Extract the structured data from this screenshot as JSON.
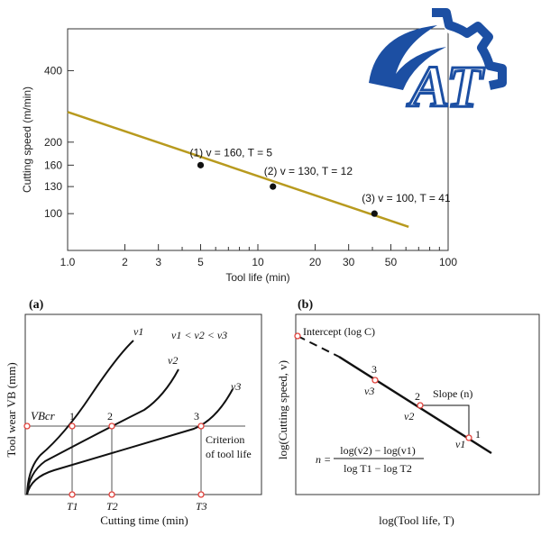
{
  "logo": {
    "text": "AT",
    "color": "#1c4fa3"
  },
  "chart_data": [
    {
      "type": "line",
      "title": "",
      "xlabel": "Tool life (min)",
      "ylabel": "Cutting speed (m/min)",
      "xscale": "log",
      "yscale": "log",
      "xlim": [
        1,
        100
      ],
      "ylim": [
        70,
        600
      ],
      "xticks": [
        {
          "value": 1,
          "label": "1.0"
        },
        {
          "value": 2,
          "label": "2"
        },
        {
          "value": 3,
          "label": "3"
        },
        {
          "value": 5,
          "label": "5"
        },
        {
          "value": 10,
          "label": "10"
        },
        {
          "value": 20,
          "label": "20"
        },
        {
          "value": 30,
          "label": "30"
        },
        {
          "value": 50,
          "label": "50"
        },
        {
          "value": 100,
          "label": "100"
        }
      ],
      "xminor": [
        4,
        6,
        7,
        8,
        9,
        40,
        60,
        70,
        80,
        90
      ],
      "yticks": [
        {
          "value": 100,
          "label": "100"
        },
        {
          "value": 130,
          "label": "130"
        },
        {
          "value": 160,
          "label": "160"
        },
        {
          "value": 200,
          "label": "200"
        },
        {
          "value": 400,
          "label": "400"
        }
      ],
      "line": {
        "x": [
          1,
          62
        ],
        "y": [
          268,
          88
        ],
        "color": "#b89a1e"
      },
      "points": [
        {
          "x": 5,
          "y": 160,
          "label": "(1) v = 160, T = 5"
        },
        {
          "x": 12,
          "y": 130,
          "label": "(2) v = 130, T = 12"
        },
        {
          "x": 41,
          "y": 100,
          "label": "(3) v = 100, T = 41"
        }
      ]
    },
    {
      "type": "line",
      "panel": "(a)",
      "xlabel": "Cutting time (min)",
      "ylabel": "Tool wear VB (mm)",
      "legend": "v1 < v2 < v3",
      "vb_label": "VBcr",
      "criterion_label_lines": [
        "Criterion",
        "of tool life"
      ],
      "curve_labels": [
        "v1",
        "v2",
        "v3"
      ],
      "x_labels": [
        "T1",
        "T2",
        "T3"
      ],
      "point_labels": [
        "1",
        "2",
        "3"
      ],
      "accent": "#e0403a"
    },
    {
      "type": "line",
      "panel": "(b)",
      "xlabel": "log(Tool life, T)",
      "ylabel": "log(Cutting speed, v)",
      "intercept_label": "Intercept (log C)",
      "slope_label": "Slope (n)",
      "point_labels": [
        "1",
        "2",
        "3"
      ],
      "velocity_labels": [
        "v1",
        "v2",
        "v3"
      ],
      "formula": {
        "lhs": "n =",
        "numerator": "log(v2) − log(v1)",
        "denominator": "log T1 − log T2"
      },
      "accent": "#e0403a"
    }
  ]
}
